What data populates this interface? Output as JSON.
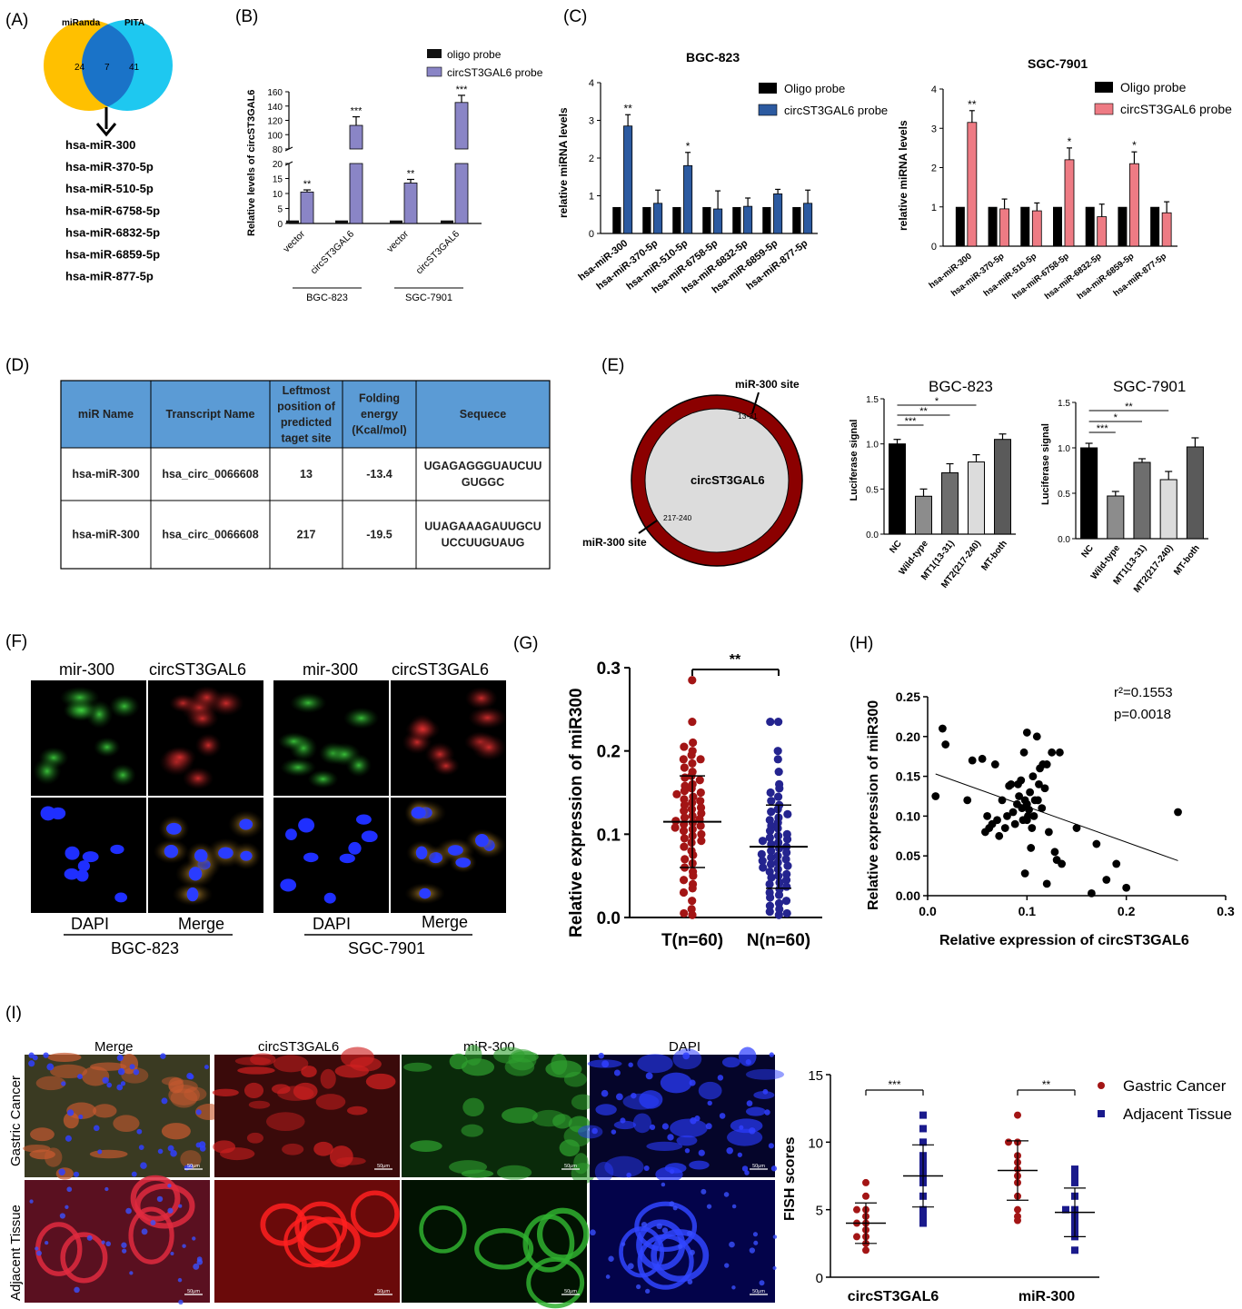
{
  "panels": {
    "A": {
      "label": "(A)",
      "set_left": "miRanda",
      "set_right": "PITA",
      "only_left": "24",
      "overlap": "7",
      "only_right": "41",
      "colors": {
        "left": "#ffc000",
        "right": "#1ec8f0",
        "overlap": "#1a73c8"
      },
      "mirnas": [
        "hsa-miR-300",
        "hsa-miR-370-5p",
        "hsa-miR-510-5p",
        "hsa-miR-6758-5p",
        "hsa-miR-6832-5p",
        "hsa-miR-6859-5p",
        "hsa-miR-877-5p"
      ]
    },
    "B": {
      "label": "(B)",
      "ylabel": "Relative levels of circST3GAL6",
      "upper_ticks": [
        "160",
        "140",
        "120",
        "100",
        "80"
      ],
      "lower_ticks": [
        "20",
        "15",
        "10",
        "5",
        "0"
      ],
      "legend": [
        "oligo probe",
        "circST3GAL6 probe"
      ],
      "colors": {
        "oligo": "#111111",
        "probe": "#8a85c6"
      },
      "categories": [
        "vector",
        "circST3GAL6",
        "vector",
        "circST3GAL6"
      ],
      "groups": [
        "BGC-823",
        "SGC-7901"
      ],
      "sig": [
        "**",
        "***",
        "**",
        "***"
      ]
    },
    "C": {
      "label": "(C)",
      "ylabel": "relative miRNA levels",
      "categories": [
        "hsa-miR-300",
        "hsa-miR-370-5p",
        "hsa-miR-510-5p",
        "hsa-miR-6758-5p",
        "hsa-miR-6832-5p",
        "hsa-miR-6859-5p",
        "hsa-miR-877-5p"
      ],
      "left_title": "BGC-823",
      "right_title": "SGC-7901",
      "left_legend": [
        "Oligo probe",
        "circST3GAL6 probe"
      ],
      "right_legend": [
        "Oligo probe",
        "circST3GAL6 probe"
      ],
      "left_ticks": [
        "4",
        "3",
        "2",
        "1",
        "0"
      ],
      "right_ticks": [
        "4",
        "3",
        "2",
        "1",
        "0"
      ],
      "left_sig": [
        "**",
        "",
        "*",
        "",
        "",
        "",
        ""
      ],
      "right_sig": [
        "**",
        "",
        "",
        "*",
        "",
        "*",
        ""
      ],
      "colors": {
        "oligo": "#000000",
        "left_probe": "#2c5aa0",
        "right_probe": "#ee7b84"
      }
    },
    "D": {
      "label": "(D)",
      "headers": [
        "miR Name",
        "Transcript Name",
        "Leftmost position of predicted taget site",
        "Folding energy (Kcal/mol)",
        "Sequece"
      ],
      "rows": [
        [
          "hsa-miR-300",
          "hsa_circ_0066608",
          "13",
          "-13.4",
          "UGAGAGGGUAUCUU GUGGC"
        ],
        [
          "hsa-miR-300",
          "hsa_circ_0066608",
          "217",
          "-19.5",
          "UUAGAAAGAUUGCU UCCUUGUAUG"
        ]
      ],
      "header_color": "#5b9bd5"
    },
    "E": {
      "label": "(E)",
      "circle_label": "circST3GAL6",
      "site_label": "miR-300 site",
      "site1_pos": "13-31",
      "site2_pos": "217-240",
      "ring_color": "#8b0000",
      "ylabel": "Luciferase signal",
      "categories": [
        "NC",
        "Wild-type",
        "MT1(13-31)",
        "MT2(217-240)",
        "MT-both"
      ],
      "left_title": "BGC-823",
      "right_title": "SGC-7901",
      "left_ticks": [
        "1.5",
        "1.0",
        "0.5",
        "0.0"
      ],
      "right_ticks": [
        "1.5",
        "1.0",
        "0.5",
        "0.0"
      ],
      "left_sig": [
        "*",
        "**",
        "***"
      ],
      "right_sig": [
        "**",
        "*",
        "***"
      ]
    },
    "F": {
      "label": "(F)",
      "col_labels": [
        "mir-300",
        "circST3GAL6",
        "mir-300",
        "circST3GAL6"
      ],
      "row_labels": [
        "DAPI",
        "Merge",
        "DAPI",
        "Merge"
      ],
      "cell_lines": [
        "BGC-823",
        "SGC-7901"
      ]
    },
    "G": {
      "label": "(G)",
      "ylabel": "Relative expression of miR300",
      "ticks": [
        "0.3",
        "0.2",
        "0.1",
        "0.0"
      ],
      "groups": [
        "T(n=60)",
        "N(n=60)"
      ],
      "sig": "**",
      "colors": {
        "T": "#a31515",
        "N": "#24248f"
      }
    },
    "H": {
      "label": "(H)",
      "ylabel": "Relative expression of miR300",
      "xlabel": "Relative expression of circST3GAL6",
      "r2": "r²=0.1553",
      "p": "p=0.0018",
      "yticks": [
        "0.25",
        "0.20",
        "0.15",
        "0.10",
        "0.05",
        "0.00"
      ],
      "xticks": [
        "0.0",
        "0.1",
        "0.2",
        "0.3"
      ]
    },
    "I": {
      "label": "(I)",
      "col_labels": [
        "Merge",
        "circST3GAL6",
        "miR-300",
        "DAPI"
      ],
      "row_labels": [
        "Gastric Cancer",
        "Adjacent Tissue"
      ],
      "scale_label": "50μm",
      "ylabel": "FISH scores",
      "ticks": [
        "15",
        "10",
        "5",
        "0"
      ],
      "groups": [
        "circST3GAL6",
        "miR-300"
      ],
      "legend": [
        "Gastric Cancer",
        "Adjacent Tissue"
      ],
      "sig": [
        "***",
        "**"
      ],
      "colors": {
        "cancer": "#a31515",
        "adjacent": "#1a1a8c"
      }
    }
  },
  "chart_data": [
    {
      "panel": "B",
      "type": "bar",
      "categories": [
        "vector",
        "circST3GAL6",
        "vector",
        "circST3GAL6"
      ],
      "groups": [
        "BGC-823",
        "BGC-823",
        "SGC-7901",
        "SGC-7901"
      ],
      "series": [
        {
          "name": "oligo probe",
          "values": [
            1,
            1,
            1,
            1
          ]
        },
        {
          "name": "circST3GAL6 probe",
          "values": [
            10.5,
            113,
            13.5,
            145
          ]
        }
      ],
      "errors": [
        [
          0,
          0,
          0,
          0
        ],
        [
          0.7,
          12,
          1.2,
          10
        ]
      ],
      "ylabel": "Relative levels of circST3GAL6",
      "broken_axis": [
        20,
        80
      ]
    },
    {
      "panel": "C-left",
      "type": "bar",
      "title": "BGC-823",
      "categories": [
        "hsa-miR-300",
        "hsa-miR-370-5p",
        "hsa-miR-510-5p",
        "hsa-miR-6758-5p",
        "hsa-miR-6832-5p",
        "hsa-miR-6859-5p",
        "hsa-miR-877-5p"
      ],
      "series": [
        {
          "name": "Oligo probe",
          "values": [
            0.7,
            0.7,
            0.7,
            0.7,
            0.7,
            0.7,
            0.7
          ]
        },
        {
          "name": "circST3GAL6 probe",
          "values": [
            2.85,
            0.8,
            1.8,
            0.65,
            0.72,
            1.05,
            0.8
          ]
        }
      ],
      "errors": [
        [
          0,
          0,
          0,
          0,
          0,
          0,
          0
        ],
        [
          0.3,
          0.35,
          0.35,
          0.48,
          0.22,
          0.12,
          0.35
        ]
      ],
      "ylim": [
        0,
        4
      ],
      "ylabel": "relative miRNA levels"
    },
    {
      "panel": "C-right",
      "type": "bar",
      "title": "SGC-7901",
      "categories": [
        "hsa-miR-300",
        "hsa-miR-370-5p",
        "hsa-miR-510-5p",
        "hsa-miR-6758-5p",
        "hsa-miR-6832-5p",
        "hsa-miR-6859-5p",
        "hsa-miR-877-5p"
      ],
      "series": [
        {
          "name": "Oligo probe",
          "values": [
            1,
            1,
            1,
            1,
            1,
            1,
            1
          ]
        },
        {
          "name": "circST3GAL6 probe",
          "values": [
            3.15,
            0.95,
            0.9,
            2.2,
            0.75,
            2.1,
            0.85
          ]
        }
      ],
      "errors": [
        [
          0,
          0,
          0,
          0,
          0,
          0,
          0
        ],
        [
          0.3,
          0.25,
          0.2,
          0.3,
          0.32,
          0.3,
          0.28
        ]
      ],
      "ylim": [
        0,
        4
      ],
      "ylabel": "relative miRNA levels"
    },
    {
      "panel": "E-left",
      "type": "bar",
      "title": "BGC-823",
      "categories": [
        "NC",
        "Wild-type",
        "MT1(13-31)",
        "MT2(217-240)",
        "MT-both"
      ],
      "values": [
        1.0,
        0.42,
        0.68,
        0.8,
        1.05
      ],
      "errors": [
        0.05,
        0.08,
        0.1,
        0.08,
        0.06
      ],
      "ylim": [
        0,
        1.5
      ],
      "ylabel": "Luciferase signal"
    },
    {
      "panel": "E-right",
      "type": "bar",
      "title": "SGC-7901",
      "categories": [
        "NC",
        "Wild-type",
        "MT1(13-31)",
        "MT2(217-240)",
        "MT-both"
      ],
      "values": [
        1.0,
        0.47,
        0.84,
        0.65,
        1.01
      ],
      "errors": [
        0.05,
        0.05,
        0.04,
        0.09,
        0.1
      ],
      "ylim": [
        0,
        1.5
      ],
      "ylabel": "Luciferase signal"
    },
    {
      "panel": "G",
      "type": "scatter",
      "categories": [
        "T(n=60)",
        "N(n=60)"
      ],
      "mean": [
        0.115,
        0.085
      ],
      "sd": [
        0.055,
        0.05
      ],
      "ylim": [
        0,
        0.3
      ],
      "T": [
        0.285,
        0.235,
        0.21,
        0.205,
        0.2,
        0.195,
        0.19,
        0.19,
        0.185,
        0.18,
        0.175,
        0.17,
        0.168,
        0.165,
        0.16,
        0.158,
        0.155,
        0.152,
        0.15,
        0.148,
        0.145,
        0.142,
        0.14,
        0.138,
        0.135,
        0.132,
        0.13,
        0.128,
        0.125,
        0.122,
        0.12,
        0.118,
        0.116,
        0.114,
        0.112,
        0.11,
        0.108,
        0.106,
        0.104,
        0.1,
        0.098,
        0.095,
        0.092,
        0.09,
        0.085,
        0.08,
        0.075,
        0.07,
        0.065,
        0.06,
        0.055,
        0.05,
        0.045,
        0.04,
        0.035,
        0.03,
        0.02,
        0.01,
        0.005,
        0.003
      ],
      "N": [
        0.235,
        0.235,
        0.2,
        0.19,
        0.175,
        0.16,
        0.155,
        0.15,
        0.145,
        0.14,
        0.135,
        0.13,
        0.127,
        0.124,
        0.12,
        0.117,
        0.114,
        0.11,
        0.107,
        0.104,
        0.1,
        0.098,
        0.096,
        0.094,
        0.092,
        0.09,
        0.088,
        0.085,
        0.083,
        0.08,
        0.078,
        0.076,
        0.074,
        0.072,
        0.07,
        0.068,
        0.066,
        0.064,
        0.062,
        0.06,
        0.058,
        0.055,
        0.052,
        0.05,
        0.048,
        0.045,
        0.042,
        0.04,
        0.037,
        0.034,
        0.03,
        0.027,
        0.024,
        0.02,
        0.017,
        0.014,
        0.01,
        0.007,
        0.005,
        0.003
      ]
    },
    {
      "panel": "H",
      "type": "scatter",
      "xlabel": "Relative expression of circST3GAL6",
      "ylabel": "Relative expression of miR300",
      "xlim": [
        0,
        0.3
      ],
      "ylim": [
        0,
        0.25
      ],
      "points": [
        [
          0.015,
          0.21
        ],
        [
          0.018,
          0.19
        ],
        [
          0.008,
          0.125
        ],
        [
          0.04,
          0.12
        ],
        [
          0.045,
          0.17
        ],
        [
          0.055,
          0.172
        ],
        [
          0.058,
          0.08
        ],
        [
          0.06,
          0.1
        ],
        [
          0.062,
          0.085
        ],
        [
          0.065,
          0.09
        ],
        [
          0.068,
          0.165
        ],
        [
          0.07,
          0.095
        ],
        [
          0.072,
          0.075
        ],
        [
          0.075,
          0.12
        ],
        [
          0.078,
          0.085
        ],
        [
          0.08,
          0.1
        ],
        [
          0.082,
          0.138
        ],
        [
          0.084,
          0.14
        ],
        [
          0.086,
          0.105
        ],
        [
          0.088,
          0.09
        ],
        [
          0.09,
          0.115
        ],
        [
          0.091,
          0.14
        ],
        [
          0.092,
          0.125
        ],
        [
          0.094,
          0.145
        ],
        [
          0.095,
          0.11
        ],
        [
          0.096,
          0.095
        ],
        [
          0.097,
          0.18
        ],
        [
          0.098,
          0.12
        ],
        [
          0.1,
          0.205
        ],
        [
          0.1,
          0.115
        ],
        [
          0.101,
          0.1
        ],
        [
          0.102,
          0.108
        ],
        [
          0.103,
          0.13
        ],
        [
          0.104,
          0.06
        ],
        [
          0.105,
          0.085
        ],
        [
          0.106,
          0.15
        ],
        [
          0.107,
          0.1
        ],
        [
          0.108,
          0.12
        ],
        [
          0.11,
          0.2
        ],
        [
          0.111,
          0.12
        ],
        [
          0.112,
          0.14
        ],
        [
          0.113,
          0.16
        ],
        [
          0.115,
          0.11
        ],
        [
          0.116,
          0.165
        ],
        [
          0.118,
          0.135
        ],
        [
          0.12,
          0.015
        ],
        [
          0.12,
          0.165
        ],
        [
          0.122,
          0.08
        ],
        [
          0.125,
          0.18
        ],
        [
          0.128,
          0.055
        ],
        [
          0.13,
          0.045
        ],
        [
          0.133,
          0.18
        ],
        [
          0.135,
          0.04
        ],
        [
          0.15,
          0.085
        ],
        [
          0.165,
          0.003
        ],
        [
          0.17,
          0.065
        ],
        [
          0.18,
          0.02
        ],
        [
          0.19,
          0.04
        ],
        [
          0.2,
          0.01
        ],
        [
          0.252,
          0.105
        ],
        [
          0.098,
          0.028
        ],
        [
          0.1,
          0.095
        ]
      ],
      "fit": {
        "x": [
          0.008,
          0.252
        ],
        "y": [
          0.153,
          0.044
        ]
      },
      "annotations": [
        "r²=0.1553",
        "p=0.0018"
      ]
    },
    {
      "panel": "I",
      "type": "scatter",
      "ylabel": "FISH scores",
      "categories": [
        "circST3GAL6",
        "miR-300"
      ],
      "ylim": [
        0,
        15
      ],
      "series": [
        {
          "name": "Gastric Cancer",
          "mean": [
            4.0,
            7.9
          ],
          "sd": [
            1.5,
            2.2
          ],
          "values": [
            [
              7,
              6,
              5,
              5,
              4.5,
              4,
              4,
              3.5,
              3,
              3,
              2.5,
              2
            ],
            [
              12,
              10,
              10,
              9,
              8.5,
              8,
              7.5,
              7,
              6,
              5,
              4.5,
              4.2
            ]
          ]
        },
        {
          "name": "Adjacent Tissue",
          "mean": [
            7.5,
            4.8
          ],
          "sd": [
            2.3,
            1.8
          ],
          "values": [
            [
              12,
              11,
              10,
              9,
              8.5,
              8,
              7.5,
              7,
              6,
              5,
              4.5,
              4
            ],
            [
              8,
              7.5,
              7,
              6,
              5,
              5,
              4.5,
              4.2,
              4,
              3.5,
              3,
              2
            ]
          ]
        }
      ]
    }
  ]
}
